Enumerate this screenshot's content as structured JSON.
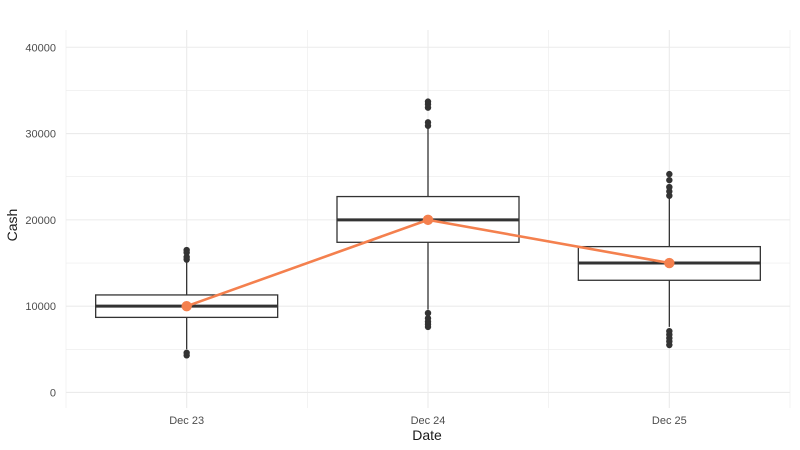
{
  "chart_data": {
    "type": "box",
    "title": "",
    "xlabel": "Date",
    "ylabel": "Cash",
    "categories": [
      "Dec 23",
      "Dec 24",
      "Dec 25"
    ],
    "ylim": [
      -1800,
      42000
    ],
    "yticks": [
      0,
      10000,
      20000,
      30000,
      40000
    ],
    "grid": true,
    "legend": "none",
    "boxes": [
      {
        "category": "Dec 23",
        "whisker_low": 5000,
        "q1": 8700,
        "median": 10000,
        "q3": 11300,
        "whisker_high": 15200,
        "outliers": [
          4300,
          4600,
          15400,
          15700,
          16200,
          16500
        ]
      },
      {
        "category": "Dec 24",
        "whisker_low": 9600,
        "q1": 17400,
        "median": 20000,
        "q3": 22700,
        "whisker_high": 30600,
        "outliers": [
          7600,
          7900,
          8200,
          8600,
          9200,
          30900,
          31300,
          33000,
          33400,
          33700
        ]
      },
      {
        "category": "Dec 25",
        "whisker_low": 7600,
        "q1": 13000,
        "median": 15000,
        "q3": 16900,
        "whisker_high": 22500,
        "outliers": [
          5500,
          5900,
          6300,
          6700,
          7100,
          22800,
          23300,
          23800,
          24600,
          25300
        ]
      }
    ],
    "line_series": {
      "values": [
        10000,
        20000,
        15000
      ],
      "color": "#f4804e"
    },
    "colors": {
      "box_stroke": "#333333",
      "grid": "#ebebeb",
      "tick_text": "#4d4d4d",
      "background": "#ffffff"
    }
  }
}
